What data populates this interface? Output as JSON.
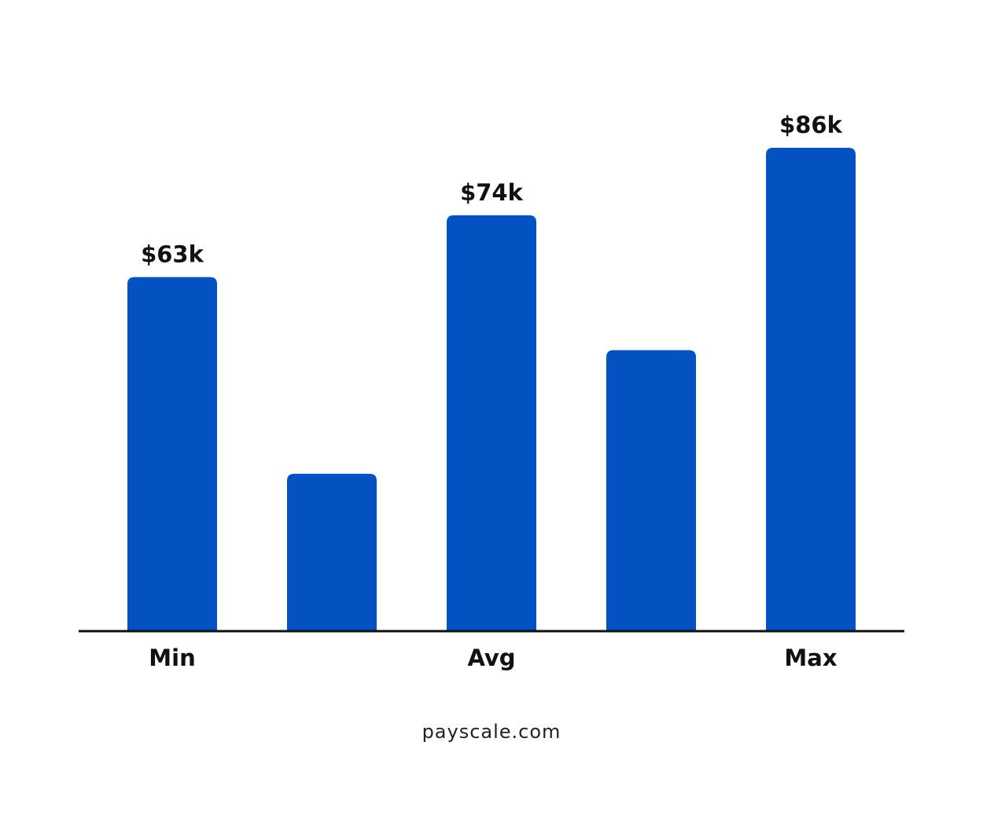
{
  "chart_data": {
    "type": "bar",
    "categories": [
      "Min",
      null,
      "Avg",
      null,
      "Max"
    ],
    "values": [
      63,
      28,
      74,
      50,
      86
    ],
    "value_labels": [
      "$63k",
      null,
      "$74k",
      null,
      "$86k"
    ],
    "color": "#0452c1",
    "source": "payscale.com"
  }
}
